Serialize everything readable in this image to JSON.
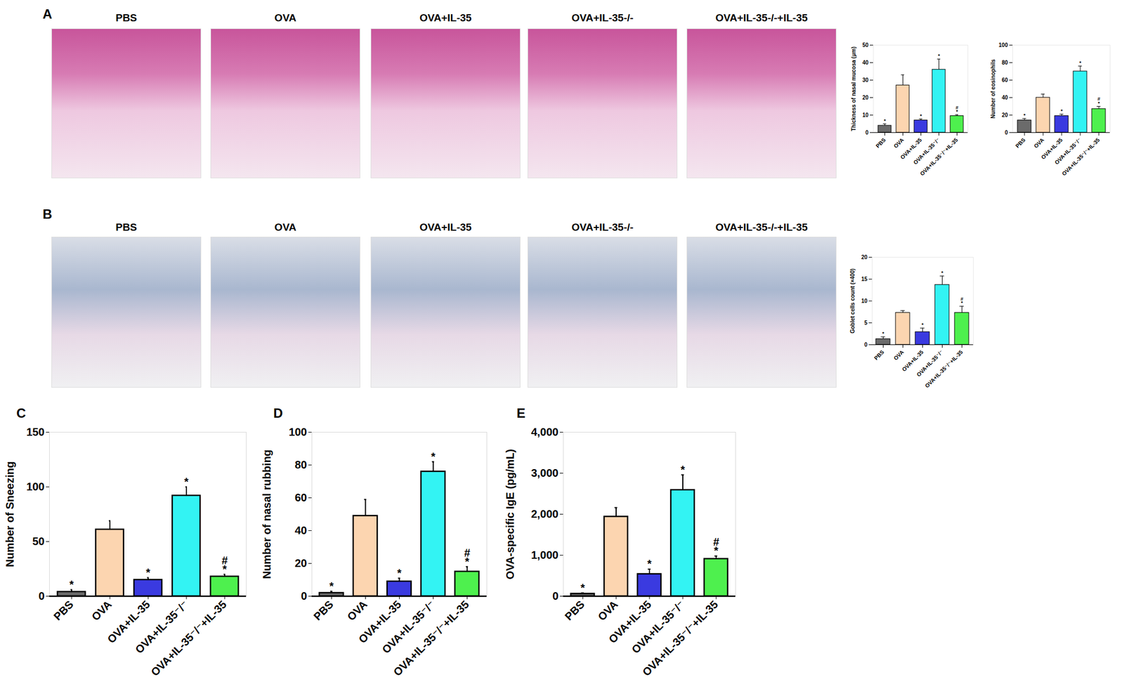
{
  "image_panels": [
    {
      "panel": "A",
      "titles": [
        "PBS",
        "OVA",
        "OVA+IL-35",
        "OVA+IL-35-/-",
        "OVA+IL-35-/-+IL-35"
      ]
    },
    {
      "panel": "B",
      "titles": [
        "PBS",
        "OVA",
        "OVA+IL-35",
        "OVA+IL-35-/-",
        "OVA+IL-35-/-+IL-35"
      ]
    }
  ],
  "chart_data": [
    {
      "type": "bar",
      "y_label": "Thickness of nasal mucosa (μm)",
      "categories": [
        "PBS",
        "OVA",
        "OVA+IL-35",
        "OVA+IL-35⁻/⁻",
        "OVA+IL-35⁻/⁻+IL-35"
      ],
      "values": [
        4,
        27,
        7,
        36,
        9.5
      ],
      "errors": [
        1,
        6,
        0.8,
        6,
        0.7
      ],
      "significance": [
        [
          "*"
        ],
        [],
        [
          "*"
        ],
        [
          "*"
        ],
        [
          "#",
          "*"
        ]
      ],
      "colors": [
        "#6b6b6b",
        "#fcd5b0",
        "#3a3ae0",
        "#33f3f3",
        "#4ef04e"
      ],
      "ylim": [
        0,
        50
      ],
      "yticks": [
        0,
        10,
        20,
        30,
        40,
        50
      ]
    },
    {
      "type": "bar",
      "y_label": "Number of eosinophils",
      "categories": [
        "PBS",
        "OVA",
        "OVA+IL-35",
        "OVA+IL-35⁻/⁻",
        "OVA+IL-35⁻/⁻+IL-35"
      ],
      "values": [
        14,
        40,
        19,
        70,
        27
      ],
      "errors": [
        2,
        4,
        2,
        6,
        3
      ],
      "significance": [
        [
          "*"
        ],
        [],
        [
          "*"
        ],
        [
          "*"
        ],
        [
          "#",
          "*"
        ]
      ],
      "colors": [
        "#6b6b6b",
        "#fcd5b0",
        "#3a3ae0",
        "#33f3f3",
        "#4ef04e"
      ],
      "ylim": [
        0,
        100
      ],
      "yticks": [
        0,
        20,
        40,
        60,
        80,
        100
      ]
    },
    {
      "type": "bar",
      "y_label": "Goblet cells count (×400)",
      "categories": [
        "PBS",
        "OVA",
        "OVA+IL-35",
        "OVA+IL-35⁻/⁻",
        "OVA+IL-35⁻/⁻+IL-35"
      ],
      "values": [
        1.3,
        7.3,
        2.9,
        13.7,
        7.3
      ],
      "errors": [
        0.5,
        0.5,
        0.9,
        2,
        1.5
      ],
      "significance": [
        [
          "*"
        ],
        [],
        [
          "*"
        ],
        [
          "*"
        ],
        [
          "#",
          "*"
        ]
      ],
      "colors": [
        "#6b6b6b",
        "#fcd5b0",
        "#3a3ae0",
        "#33f3f3",
        "#4ef04e"
      ],
      "ylim": [
        0,
        20
      ],
      "yticks": [
        0,
        5,
        10,
        15,
        20
      ]
    },
    {
      "type": "bar",
      "annotations": [
        "C"
      ],
      "y_label": "Number of Sneezing",
      "categories": [
        "PBS",
        "OVA",
        "OVA+IL-35",
        "OVA+IL-35⁻/⁻",
        "OVA+IL-35⁻/⁻+IL-35"
      ],
      "values": [
        4,
        61,
        15,
        92,
        18
      ],
      "errors": [
        2,
        8,
        2,
        8,
        2
      ],
      "significance": [
        [
          "*"
        ],
        [],
        [
          "*"
        ],
        [
          "*"
        ],
        [
          "#",
          "*"
        ]
      ],
      "colors": [
        "#6b6b6b",
        "#fcd5b0",
        "#3a3ae0",
        "#33f3f3",
        "#4ef04e"
      ],
      "ylim": [
        0,
        150
      ],
      "yticks": [
        0,
        50,
        100,
        150
      ]
    },
    {
      "type": "bar",
      "annotations": [
        "D"
      ],
      "y_label": "Number of nasal rubbing",
      "categories": [
        "PBS",
        "OVA",
        "OVA+IL-35",
        "OVA+IL-35⁻/⁻",
        "OVA+IL-35⁻/⁻+IL-35"
      ],
      "values": [
        2,
        49,
        9,
        76,
        15
      ],
      "errors": [
        1,
        10,
        2,
        6,
        3
      ],
      "significance": [
        [
          "*"
        ],
        [],
        [
          "*"
        ],
        [
          "*"
        ],
        [
          "#",
          "*"
        ]
      ],
      "colors": [
        "#6b6b6b",
        "#fcd5b0",
        "#3a3ae0",
        "#33f3f3",
        "#4ef04e"
      ],
      "ylim": [
        0,
        100
      ],
      "yticks": [
        0,
        20,
        40,
        60,
        80,
        100
      ]
    },
    {
      "type": "bar",
      "annotations": [
        "E"
      ],
      "y_label": "OVA-specific IgE (pg/mL)",
      "categories": [
        "PBS",
        "OVA",
        "OVA+IL-35",
        "OVA+IL-35⁻/⁻",
        "OVA+IL-35⁻/⁻+IL-35"
      ],
      "values": [
        60,
        1940,
        540,
        2590,
        910
      ],
      "errors": [
        20,
        220,
        120,
        370,
        70
      ],
      "significance": [
        [
          "*"
        ],
        [],
        [
          "*"
        ],
        [
          "*"
        ],
        [
          "#",
          "*"
        ]
      ],
      "colors": [
        "#6b6b6b",
        "#fcd5b0",
        "#3a3ae0",
        "#33f3f3",
        "#4ef04e"
      ],
      "ylim": [
        0,
        4000
      ],
      "yticks": [
        0,
        1000,
        2000,
        3000,
        4000
      ]
    }
  ]
}
